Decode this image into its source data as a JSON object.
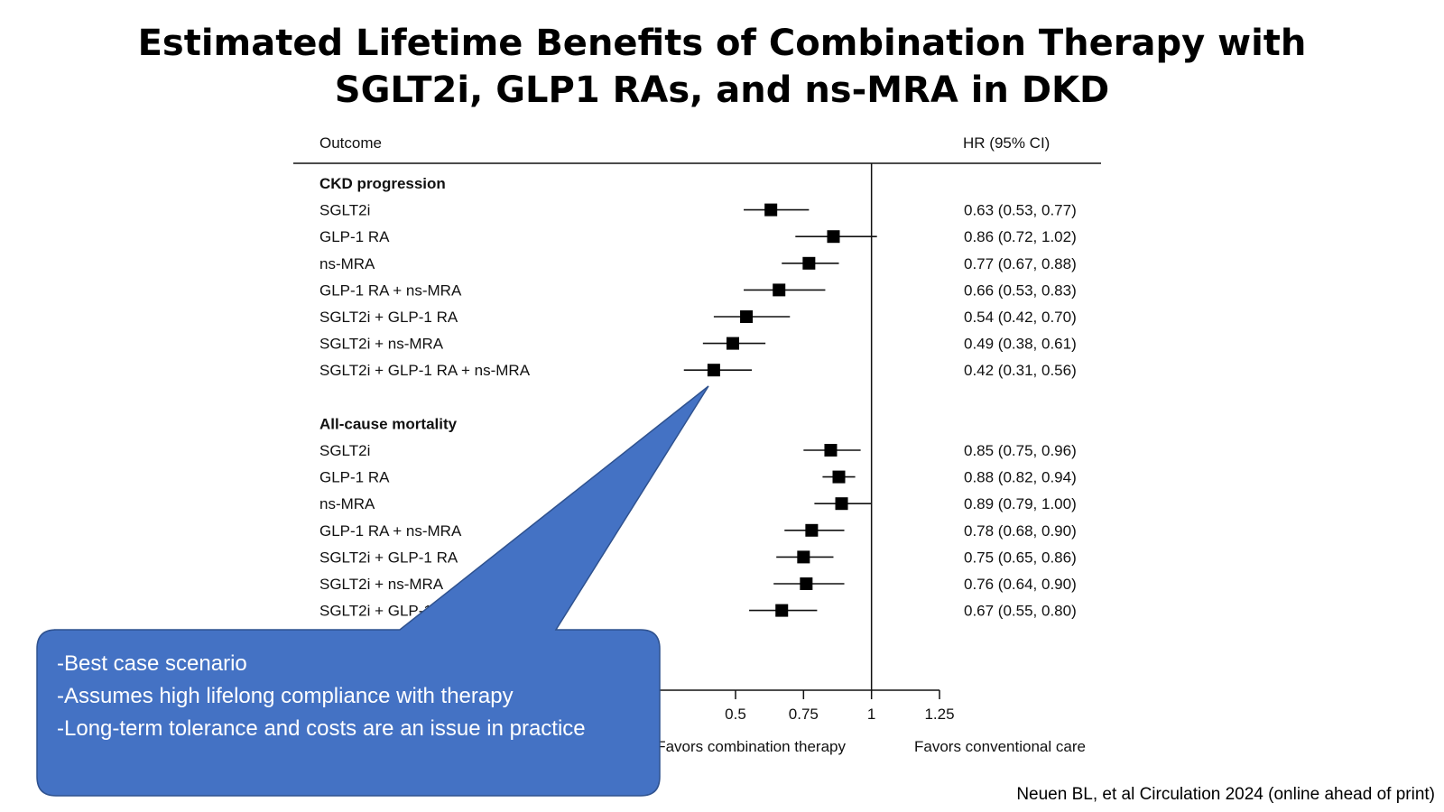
{
  "slide": {
    "title_line1": "Estimated Lifetime Benefits of Combination Therapy with",
    "title_line2": "SGLT2i, GLP1 RAs, and ns-MRA in DKD",
    "citation": "Neuen BL, et al Circulation 2024 (online ahead of print)"
  },
  "callout": {
    "lines": [
      "-Best case scenario",
      "-Assumes high lifelong compliance with therapy",
      "-Long-term tolerance and costs are an issue in practice"
    ],
    "fill": "#4472C4",
    "stroke": "#2F528F"
  },
  "chart_data": {
    "type": "forest",
    "col_outcome": "Outcome",
    "col_hr": "HR (95% CI)",
    "reference_line": 1,
    "xlim": [
      0.25,
      1.25
    ],
    "ticks": [
      0.5,
      0.75,
      1,
      1.25
    ],
    "tick_labels": [
      "0.5",
      "0.75",
      "1",
      "1.25"
    ],
    "favors_left": "Favors combination therapy",
    "favors_right": "Favors conventional care",
    "groups": [
      {
        "name": "CKD progression",
        "rows": [
          {
            "label": "SGLT2i",
            "hr": 0.63,
            "lo": 0.53,
            "hi": 0.77,
            "text": "0.63 (0.53, 0.77)"
          },
          {
            "label": "GLP-1 RA",
            "hr": 0.86,
            "lo": 0.72,
            "hi": 1.02,
            "text": "0.86 (0.72, 1.02)"
          },
          {
            "label": "ns-MRA",
            "hr": 0.77,
            "lo": 0.67,
            "hi": 0.88,
            "text": "0.77 (0.67, 0.88)"
          },
          {
            "label": "GLP-1 RA + ns-MRA",
            "hr": 0.66,
            "lo": 0.53,
            "hi": 0.83,
            "text": "0.66 (0.53, 0.83)"
          },
          {
            "label": "SGLT2i + GLP-1 RA",
            "hr": 0.54,
            "lo": 0.42,
            "hi": 0.7,
            "text": "0.54 (0.42, 0.70)"
          },
          {
            "label": "SGLT2i + ns-MRA",
            "hr": 0.49,
            "lo": 0.38,
            "hi": 0.61,
            "text": "0.49 (0.38, 0.61)"
          },
          {
            "label": "SGLT2i + GLP-1 RA + ns-MRA",
            "hr": 0.42,
            "lo": 0.31,
            "hi": 0.56,
            "text": "0.42 (0.31, 0.56)"
          }
        ]
      },
      {
        "name": "All-cause mortality",
        "rows": [
          {
            "label": "SGLT2i",
            "hr": 0.85,
            "lo": 0.75,
            "hi": 0.96,
            "text": "0.85 (0.75, 0.96)"
          },
          {
            "label": "GLP-1 RA",
            "hr": 0.88,
            "lo": 0.82,
            "hi": 0.94,
            "text": "0.88 (0.82, 0.94)"
          },
          {
            "label": "ns-MRA",
            "hr": 0.89,
            "lo": 0.79,
            "hi": 1.0,
            "text": "0.89 (0.79, 1.00)"
          },
          {
            "label": "GLP-1 RA + ns-MRA",
            "hr": 0.78,
            "lo": 0.68,
            "hi": 0.9,
            "text": "0.78 (0.68, 0.90)"
          },
          {
            "label": "SGLT2i + GLP-1 RA",
            "hr": 0.75,
            "lo": 0.65,
            "hi": 0.86,
            "text": "0.75 (0.65, 0.86)"
          },
          {
            "label": "SGLT2i + ns-MRA",
            "hr": 0.76,
            "lo": 0.64,
            "hi": 0.9,
            "text": "0.76 (0.64, 0.90)"
          },
          {
            "label": "SGLT2i + GLP-1 RA + ns-MRA",
            "hr": 0.67,
            "lo": 0.55,
            "hi": 0.8,
            "text": "0.67 (0.55, 0.80)"
          }
        ]
      }
    ]
  }
}
